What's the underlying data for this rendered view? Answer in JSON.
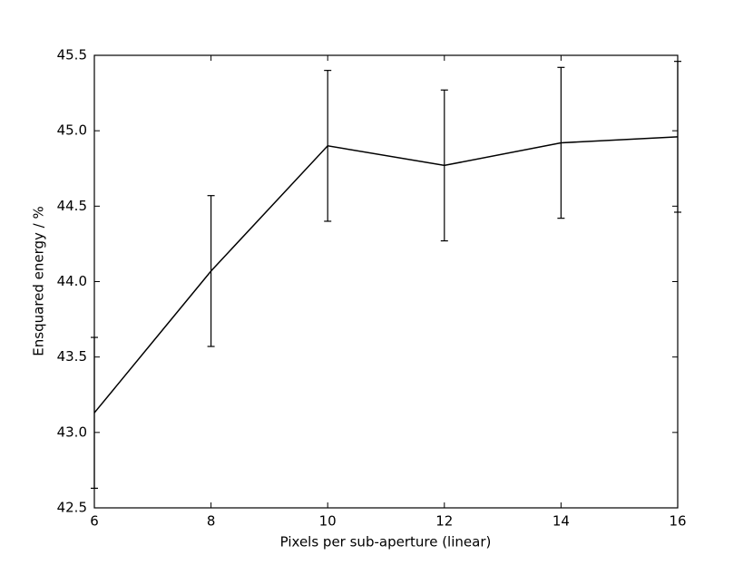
{
  "chart_data": {
    "type": "line",
    "xlabel": "Pixels per sub-aperture (linear)",
    "ylabel": "Ensquared energy / %",
    "x": [
      6,
      8,
      10,
      12,
      14,
      16
    ],
    "values": [
      43.13,
      44.07,
      44.9,
      44.77,
      44.92,
      44.96
    ],
    "errors": [
      0.5,
      0.5,
      0.5,
      0.5,
      0.5,
      0.5
    ],
    "color": "#000000",
    "xlim": [
      6,
      16
    ],
    "ylim": [
      42.5,
      45.5
    ],
    "xticks": [
      6,
      8,
      10,
      12,
      14,
      16
    ],
    "yticks": [
      42.5,
      {
        "value": 43.0,
        "label": "43.0"
      },
      43.5,
      {
        "value": 44.0,
        "label": "44.0"
      },
      44.5,
      {
        "value": 45.0,
        "label": "45.0"
      },
      45.5
    ]
  }
}
